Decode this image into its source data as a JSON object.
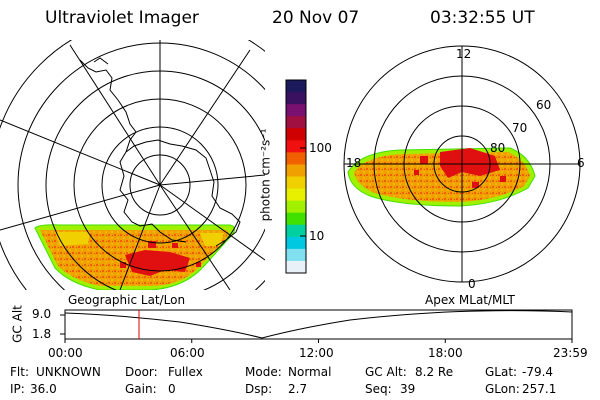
{
  "header": {
    "instrument": "Ultraviolet Imager",
    "date": "20 Nov 07",
    "time": "03:32:55 UT"
  },
  "colorbar": {
    "label": "photon cm⁻²s⁻¹",
    "scale": "log",
    "ticks": [
      "100",
      "10"
    ],
    "colors": [
      "#1a1a5c",
      "#3a1060",
      "#7a1070",
      "#a01040",
      "#d00000",
      "#f01010",
      "#f06000",
      "#f0a000",
      "#f0d000",
      "#e8f000",
      "#a0f000",
      "#40e000",
      "#00d0a0",
      "#00c8e0",
      "#80e0f0",
      "#e8f0f8"
    ]
  },
  "left_panel": {
    "projection_label": "Geographic Lat/Lon"
  },
  "right_panel": {
    "projection_label": "Apex MLat/MLT",
    "mlt_labels": [
      "12",
      "18",
      "6",
      "0"
    ],
    "mlat_labels": [
      "60",
      "70",
      "80"
    ]
  },
  "timeline": {
    "axis_label": "GC Alt",
    "y_ticks": [
      "9.0",
      "1.8"
    ],
    "x_ticks": [
      "00:00",
      "06:00",
      "12:00",
      "18:00",
      "23:59"
    ],
    "current_time_fraction": 0.146
  },
  "status": {
    "row1": [
      {
        "label": "Flt:",
        "value": "UNKNOWN"
      },
      {
        "label": "Door:",
        "value": "Fullex"
      },
      {
        "label": "Mode:",
        "value": "Normal"
      },
      {
        "label": "GC Alt:",
        "value": "8.2 Re"
      },
      {
        "label": "GLat:",
        "value": "-79.4"
      }
    ],
    "row2": [
      {
        "label": "IP:",
        "value": "36.0"
      },
      {
        "label": "Gain:",
        "value": "0"
      },
      {
        "label": "Dsp:",
        "value": "2.7"
      },
      {
        "label": "Seq:",
        "value": "39"
      },
      {
        "label": "GLon:",
        "value": "257.1"
      }
    ]
  }
}
